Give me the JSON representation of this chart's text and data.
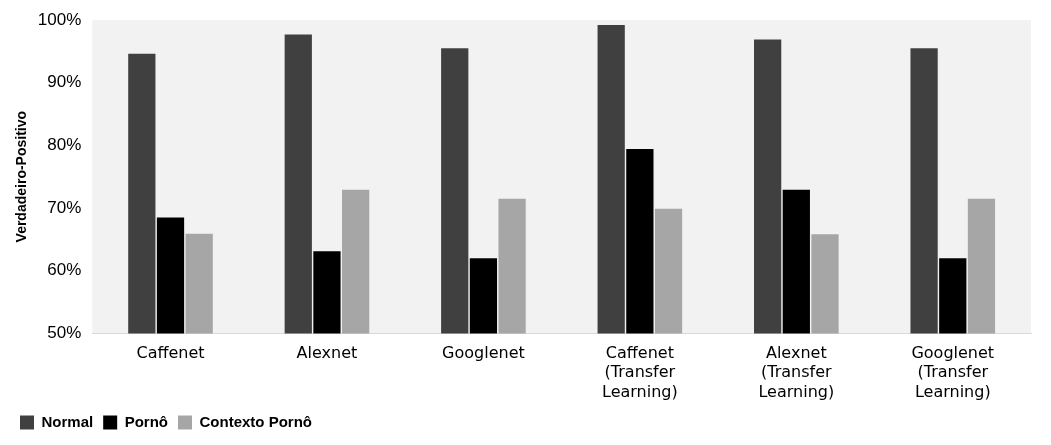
{
  "chart_data": {
    "type": "bar",
    "ylabel": "Verdadeiro-Positivo",
    "categories": [
      "Caffenet",
      "Alexnet",
      "Googlenet",
      "Caffenet (Transfer Learning)",
      "Alexnet (Transfer Learning)",
      "Googlenet (Transfer Learning)"
    ],
    "series": [
      {
        "name": "Normal",
        "color": "#404040",
        "values": [
          94.6,
          97.7,
          95.5,
          99.2,
          96.9,
          95.5
        ]
      },
      {
        "name": "Pornô",
        "color": "#000000",
        "values": [
          68.5,
          63.1,
          62.0,
          79.4,
          72.9,
          62.0
        ]
      },
      {
        "name": "Contexto Pornô",
        "color": "#a6a6a6",
        "values": [
          65.9,
          72.9,
          71.5,
          69.9,
          65.8,
          71.5
        ]
      }
    ],
    "ylim": [
      50,
      100
    ],
    "yticks": [
      {
        "value": 50,
        "label": "50%"
      },
      {
        "value": 60,
        "label": "60%"
      },
      {
        "value": 70,
        "label": "70%"
      },
      {
        "value": 80,
        "label": "80%"
      },
      {
        "value": 90,
        "label": "90%"
      },
      {
        "value": 100,
        "label": "100%"
      }
    ],
    "grid": false,
    "legend": "bottom left"
  }
}
